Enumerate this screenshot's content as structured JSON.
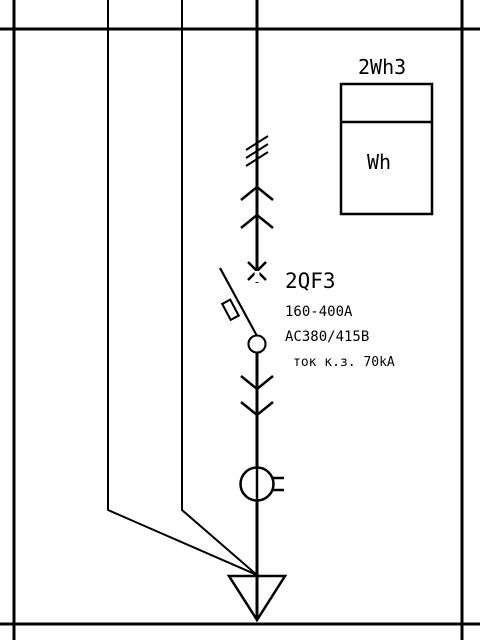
{
  "meter": {
    "designation": "2Wh3",
    "unit": "Wh"
  },
  "breaker": {
    "designation": "2QF3",
    "current_range": "160-400A",
    "voltage": "AC380/415B",
    "short_circuit": "ток к.з. 70kA"
  }
}
